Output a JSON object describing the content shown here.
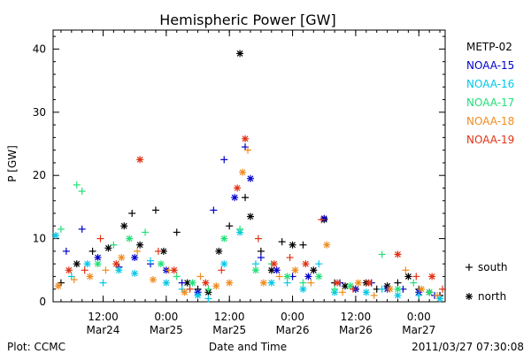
{
  "chart_data": {
    "type": "scatter",
    "title": "Hemispheric Power [GW]",
    "xlabel": "Date and Time",
    "ylabel": "P [GW]",
    "ylim": [
      0,
      43
    ],
    "yticks": [
      0,
      10,
      20,
      30,
      40
    ],
    "xlim": [
      "2011-03-24T02:30",
      "2011-03-27T05:00"
    ],
    "xticks": [
      {
        "t": "2011-03-24T12:00",
        "line1": "12:00",
        "line2": "Mar24"
      },
      {
        "t": "2011-03-25T00:00",
        "line1": "0:00",
        "line2": "Mar25"
      },
      {
        "t": "2011-03-25T12:00",
        "line1": "12:00",
        "line2": "Mar25"
      },
      {
        "t": "2011-03-26T00:00",
        "line1": "0:00",
        "line2": "Mar26"
      },
      {
        "t": "2011-03-26T12:00",
        "line1": "12:00",
        "line2": "Mar26"
      },
      {
        "t": "2011-03-27T00:00",
        "line1": "0:00",
        "line2": "Mar27"
      }
    ],
    "legend_position": "right",
    "marker_legend": [
      {
        "symbol": "+",
        "label": "south"
      },
      {
        "symbol": "*",
        "label": "north"
      }
    ],
    "series": [
      {
        "name": "METP-02",
        "color": "#000000",
        "points": [
          {
            "t": "2011-03-24T04:00",
            "y": 3,
            "m": "+"
          },
          {
            "t": "2011-03-24T07:00",
            "y": 6,
            "m": "*"
          },
          {
            "t": "2011-03-24T10:00",
            "y": 8,
            "m": "+"
          },
          {
            "t": "2011-03-24T13:00",
            "y": 8.5,
            "m": "*"
          },
          {
            "t": "2011-03-24T16:00",
            "y": 12,
            "m": "*"
          },
          {
            "t": "2011-03-24T17:30",
            "y": 14,
            "m": "+"
          },
          {
            "t": "2011-03-24T19:00",
            "y": 9,
            "m": "*"
          },
          {
            "t": "2011-03-24T22:00",
            "y": 14.5,
            "m": "+"
          },
          {
            "t": "2011-03-24T23:30",
            "y": 8,
            "m": "*"
          },
          {
            "t": "2011-03-25T02:00",
            "y": 11,
            "m": "+"
          },
          {
            "t": "2011-03-25T04:00",
            "y": 3,
            "m": "*"
          },
          {
            "t": "2011-03-25T06:00",
            "y": 2,
            "m": "+"
          },
          {
            "t": "2011-03-25T08:00",
            "y": 1.5,
            "m": "*"
          },
          {
            "t": "2011-03-25T10:00",
            "y": 8,
            "m": "*"
          },
          {
            "t": "2011-03-25T12:00",
            "y": 12,
            "m": "+"
          },
          {
            "t": "2011-03-25T14:00",
            "y": 39.3,
            "m": "*"
          },
          {
            "t": "2011-03-25T15:00",
            "y": 16.5,
            "m": "+"
          },
          {
            "t": "2011-03-25T16:00",
            "y": 13.5,
            "m": "*"
          },
          {
            "t": "2011-03-25T18:00",
            "y": 8,
            "m": "+"
          },
          {
            "t": "2011-03-25T20:00",
            "y": 5,
            "m": "*"
          },
          {
            "t": "2011-03-25T22:00",
            "y": 9.5,
            "m": "+"
          },
          {
            "t": "2011-03-26T00:00",
            "y": 9,
            "m": "*"
          },
          {
            "t": "2011-03-26T02:00",
            "y": 9,
            "m": "+"
          },
          {
            "t": "2011-03-26T04:00",
            "y": 5,
            "m": "*"
          },
          {
            "t": "2011-03-26T06:00",
            "y": 13,
            "m": "*"
          },
          {
            "t": "2011-03-26T08:00",
            "y": 3,
            "m": "+"
          },
          {
            "t": "2011-03-26T10:00",
            "y": 2.5,
            "m": "*"
          },
          {
            "t": "2011-03-26T12:00",
            "y": 2,
            "m": "+"
          },
          {
            "t": "2011-03-26T14:00",
            "y": 3,
            "m": "*"
          },
          {
            "t": "2011-03-26T16:00",
            "y": 2,
            "m": "+"
          },
          {
            "t": "2011-03-26T18:00",
            "y": 2.5,
            "m": "*"
          },
          {
            "t": "2011-03-26T20:00",
            "y": 3,
            "m": "+"
          },
          {
            "t": "2011-03-26T22:00",
            "y": 4,
            "m": "*"
          },
          {
            "t": "2011-03-27T00:00",
            "y": 2,
            "m": "+"
          },
          {
            "t": "2011-03-27T02:00",
            "y": 1.5,
            "m": "*"
          },
          {
            "t": "2011-03-27T04:00",
            "y": 1,
            "m": "+"
          }
        ]
      },
      {
        "name": "NOAA-15",
        "color": "#0000cc",
        "points": [
          {
            "t": "2011-03-24T05:00",
            "y": 8,
            "m": "+"
          },
          {
            "t": "2011-03-24T08:00",
            "y": 11.5,
            "m": "+"
          },
          {
            "t": "2011-03-24T11:00",
            "y": 7,
            "m": "*"
          },
          {
            "t": "2011-03-24T15:00",
            "y": 5.5,
            "m": "+"
          },
          {
            "t": "2011-03-24T18:00",
            "y": 7,
            "m": "*"
          },
          {
            "t": "2011-03-24T21:00",
            "y": 6,
            "m": "+"
          },
          {
            "t": "2011-03-25T00:00",
            "y": 5,
            "m": "*"
          },
          {
            "t": "2011-03-25T03:00",
            "y": 3,
            "m": "+"
          },
          {
            "t": "2011-03-25T06:00",
            "y": 1.5,
            "m": "*"
          },
          {
            "t": "2011-03-25T09:00",
            "y": 14.5,
            "m": "+"
          },
          {
            "t": "2011-03-25T11:00",
            "y": 22.5,
            "m": "+"
          },
          {
            "t": "2011-03-25T13:00",
            "y": 16.5,
            "m": "*"
          },
          {
            "t": "2011-03-25T15:00",
            "y": 24.5,
            "m": "+"
          },
          {
            "t": "2011-03-25T16:00",
            "y": 19.5,
            "m": "*"
          },
          {
            "t": "2011-03-25T18:00",
            "y": 7,
            "m": "+"
          },
          {
            "t": "2011-03-25T21:00",
            "y": 5,
            "m": "*"
          },
          {
            "t": "2011-03-26T00:00",
            "y": 4,
            "m": "+"
          },
          {
            "t": "2011-03-26T03:00",
            "y": 4,
            "m": "*"
          },
          {
            "t": "2011-03-26T06:00",
            "y": 13.2,
            "m": "*"
          },
          {
            "t": "2011-03-26T09:00",
            "y": 3,
            "m": "+"
          },
          {
            "t": "2011-03-26T12:00",
            "y": 2,
            "m": "*"
          },
          {
            "t": "2011-03-26T15:00",
            "y": 3,
            "m": "+"
          },
          {
            "t": "2011-03-26T18:00",
            "y": 2,
            "m": "*"
          },
          {
            "t": "2011-03-26T21:00",
            "y": 2,
            "m": "+"
          },
          {
            "t": "2011-03-27T00:00",
            "y": 1.5,
            "m": "*"
          },
          {
            "t": "2011-03-27T03:00",
            "y": 1,
            "m": "+"
          }
        ]
      },
      {
        "name": "NOAA-16",
        "color": "#00c8e6",
        "points": [
          {
            "t": "2011-03-24T03:00",
            "y": 10.5,
            "m": "*"
          },
          {
            "t": "2011-03-24T06:00",
            "y": 4,
            "m": "+"
          },
          {
            "t": "2011-03-24T09:00",
            "y": 6,
            "m": "*"
          },
          {
            "t": "2011-03-24T12:00",
            "y": 3,
            "m": "+"
          },
          {
            "t": "2011-03-24T15:00",
            "y": 5,
            "m": "*"
          },
          {
            "t": "2011-03-24T18:00",
            "y": 4.5,
            "m": "*"
          },
          {
            "t": "2011-03-24T21:00",
            "y": 6.5,
            "m": "+"
          },
          {
            "t": "2011-03-25T00:00",
            "y": 3,
            "m": "*"
          },
          {
            "t": "2011-03-25T03:00",
            "y": 2,
            "m": "+"
          },
          {
            "t": "2011-03-25T06:00",
            "y": 1,
            "m": "*"
          },
          {
            "t": "2011-03-25T08:00",
            "y": 0.5,
            "m": "+"
          },
          {
            "t": "2011-03-25T11:00",
            "y": 6,
            "m": "*"
          },
          {
            "t": "2011-03-25T14:00",
            "y": 11,
            "m": "*"
          },
          {
            "t": "2011-03-25T17:00",
            "y": 6,
            "m": "+"
          },
          {
            "t": "2011-03-25T20:00",
            "y": 3,
            "m": "*"
          },
          {
            "t": "2011-03-25T23:00",
            "y": 3,
            "m": "+"
          },
          {
            "t": "2011-03-26T02:00",
            "y": 2,
            "m": "*"
          },
          {
            "t": "2011-03-26T05:00",
            "y": 6,
            "m": "+"
          },
          {
            "t": "2011-03-26T08:00",
            "y": 1.5,
            "m": "*"
          },
          {
            "t": "2011-03-26T11:00",
            "y": 2.5,
            "m": "+"
          },
          {
            "t": "2011-03-26T14:00",
            "y": 1.5,
            "m": "*"
          },
          {
            "t": "2011-03-26T17:00",
            "y": 2,
            "m": "+"
          },
          {
            "t": "2011-03-26T20:00",
            "y": 1,
            "m": "*"
          },
          {
            "t": "2011-03-27T00:00",
            "y": 1,
            "m": "+"
          },
          {
            "t": "2011-03-27T04:00",
            "y": 0.5,
            "m": "*"
          }
        ]
      },
      {
        "name": "NOAA-17",
        "color": "#22e079",
        "points": [
          {
            "t": "2011-03-24T04:00",
            "y": 11.5,
            "m": "+"
          },
          {
            "t": "2011-03-24T07:00",
            "y": 18.5,
            "m": "+"
          },
          {
            "t": "2011-03-24T08:00",
            "y": 17.5,
            "m": "+"
          },
          {
            "t": "2011-03-24T11:00",
            "y": 6,
            "m": "*"
          },
          {
            "t": "2011-03-24T14:00",
            "y": 9,
            "m": "+"
          },
          {
            "t": "2011-03-24T17:00",
            "y": 10,
            "m": "*"
          },
          {
            "t": "2011-03-24T20:00",
            "y": 11,
            "m": "+"
          },
          {
            "t": "2011-03-24T23:00",
            "y": 6,
            "m": "*"
          },
          {
            "t": "2011-03-25T02:00",
            "y": 4,
            "m": "+"
          },
          {
            "t": "2011-03-25T05:00",
            "y": 3,
            "m": "*"
          },
          {
            "t": "2011-03-25T08:00",
            "y": 2,
            "m": "+"
          },
          {
            "t": "2011-03-25T11:00",
            "y": 10,
            "m": "*"
          },
          {
            "t": "2011-03-25T14:00",
            "y": 11.5,
            "m": "+"
          },
          {
            "t": "2011-03-25T17:00",
            "y": 5,
            "m": "*"
          },
          {
            "t": "2011-03-25T20:00",
            "y": 6,
            "m": "+"
          },
          {
            "t": "2011-03-25T23:00",
            "y": 4,
            "m": "*"
          },
          {
            "t": "2011-03-26T02:00",
            "y": 3,
            "m": "+"
          },
          {
            "t": "2011-03-26T05:00",
            "y": 4,
            "m": "*"
          },
          {
            "t": "2011-03-26T08:00",
            "y": 2,
            "m": "+"
          },
          {
            "t": "2011-03-26T11:00",
            "y": 2.5,
            "m": "*"
          },
          {
            "t": "2011-03-26T17:00",
            "y": 7.5,
            "m": "+"
          },
          {
            "t": "2011-03-26T20:00",
            "y": 2,
            "m": "*"
          },
          {
            "t": "2011-03-26T23:00",
            "y": 3,
            "m": "+"
          },
          {
            "t": "2011-03-27T02:00",
            "y": 1.5,
            "m": "*"
          }
        ]
      },
      {
        "name": "NOAA-18",
        "color": "#f08c1e",
        "points": [
          {
            "t": "2011-03-24T03:30",
            "y": 2.5,
            "m": "*"
          },
          {
            "t": "2011-03-24T06:30",
            "y": 3.5,
            "m": "+"
          },
          {
            "t": "2011-03-24T09:30",
            "y": 4,
            "m": "*"
          },
          {
            "t": "2011-03-24T12:30",
            "y": 5,
            "m": "+"
          },
          {
            "t": "2011-03-24T15:30",
            "y": 7,
            "m": "*"
          },
          {
            "t": "2011-03-24T18:30",
            "y": 8,
            "m": "+"
          },
          {
            "t": "2011-03-24T21:30",
            "y": 3.5,
            "m": "*"
          },
          {
            "t": "2011-03-25T00:30",
            "y": 5,
            "m": "+"
          },
          {
            "t": "2011-03-25T03:30",
            "y": 1.5,
            "m": "*"
          },
          {
            "t": "2011-03-25T06:30",
            "y": 4,
            "m": "+"
          },
          {
            "t": "2011-03-25T09:30",
            "y": 2.5,
            "m": "*"
          },
          {
            "t": "2011-03-25T12:00",
            "y": 3,
            "m": "*"
          },
          {
            "t": "2011-03-25T14:30",
            "y": 20.5,
            "m": "*"
          },
          {
            "t": "2011-03-25T15:30",
            "y": 24,
            "m": "+"
          },
          {
            "t": "2011-03-25T18:30",
            "y": 3,
            "m": "*"
          },
          {
            "t": "2011-03-25T21:30",
            "y": 4,
            "m": "+"
          },
          {
            "t": "2011-03-26T00:30",
            "y": 5,
            "m": "*"
          },
          {
            "t": "2011-03-26T03:30",
            "y": 3,
            "m": "+"
          },
          {
            "t": "2011-03-26T06:30",
            "y": 9,
            "m": "*"
          },
          {
            "t": "2011-03-26T09:30",
            "y": 1.5,
            "m": "+"
          },
          {
            "t": "2011-03-26T12:30",
            "y": 3,
            "m": "*"
          },
          {
            "t": "2011-03-26T15:30",
            "y": 1,
            "m": "+"
          },
          {
            "t": "2011-03-26T18:30",
            "y": 2,
            "m": "*"
          },
          {
            "t": "2011-03-26T21:30",
            "y": 5,
            "m": "+"
          },
          {
            "t": "2011-03-27T00:30",
            "y": 2,
            "m": "*"
          },
          {
            "t": "2011-03-27T03:30",
            "y": 1,
            "m": "+"
          }
        ]
      },
      {
        "name": "NOAA-19",
        "color": "#e03214",
        "points": [
          {
            "t": "2011-03-24T05:30",
            "y": 5,
            "m": "*"
          },
          {
            "t": "2011-03-24T08:30",
            "y": 5,
            "m": "+"
          },
          {
            "t": "2011-03-24T11:30",
            "y": 10,
            "m": "+"
          },
          {
            "t": "2011-03-24T14:30",
            "y": 6,
            "m": "*"
          },
          {
            "t": "2011-03-24T19:00",
            "y": 22.5,
            "m": "*"
          },
          {
            "t": "2011-03-24T22:30",
            "y": 8,
            "m": "+"
          },
          {
            "t": "2011-03-25T01:30",
            "y": 5,
            "m": "*"
          },
          {
            "t": "2011-03-25T04:30",
            "y": 2,
            "m": "+"
          },
          {
            "t": "2011-03-25T07:30",
            "y": 3,
            "m": "*"
          },
          {
            "t": "2011-03-25T10:30",
            "y": 5,
            "m": "+"
          },
          {
            "t": "2011-03-25T13:30",
            "y": 18,
            "m": "*"
          },
          {
            "t": "2011-03-25T15:00",
            "y": 25.8,
            "m": "*"
          },
          {
            "t": "2011-03-25T17:30",
            "y": 10,
            "m": "+"
          },
          {
            "t": "2011-03-25T20:30",
            "y": 6,
            "m": "*"
          },
          {
            "t": "2011-03-25T23:30",
            "y": 7,
            "m": "+"
          },
          {
            "t": "2011-03-26T02:30",
            "y": 6,
            "m": "*"
          },
          {
            "t": "2011-03-26T05:30",
            "y": 13,
            "m": "+"
          },
          {
            "t": "2011-03-26T08:30",
            "y": 3,
            "m": "*"
          },
          {
            "t": "2011-03-26T11:30",
            "y": 2,
            "m": "+"
          },
          {
            "t": "2011-03-26T14:30",
            "y": 3,
            "m": "*"
          },
          {
            "t": "2011-03-26T20:00",
            "y": 7.5,
            "m": "*"
          },
          {
            "t": "2011-03-26T23:30",
            "y": 4,
            "m": "+"
          },
          {
            "t": "2011-03-27T02:30",
            "y": 4,
            "m": "*"
          },
          {
            "t": "2011-03-27T04:30",
            "y": 2,
            "m": "+"
          }
        ]
      }
    ]
  },
  "footer": {
    "plot_credit": "Plot: CCMC",
    "timestamp": "2011/03/27 07:30:08"
  }
}
